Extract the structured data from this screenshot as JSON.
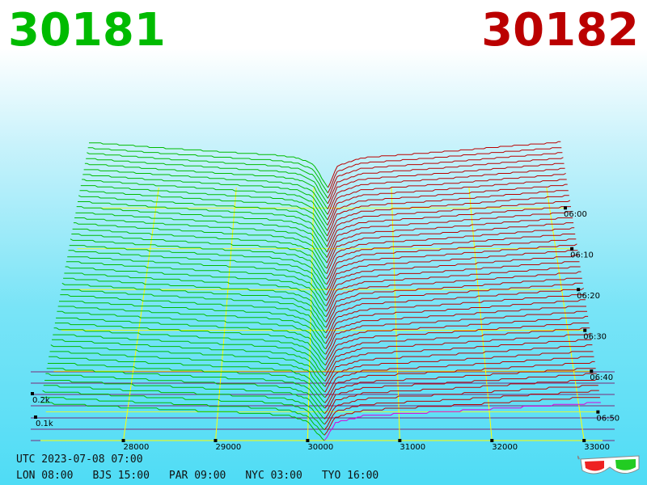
{
  "header": {
    "bid_price": "30181",
    "ask_price": "30182"
  },
  "colors": {
    "bid": "#00bb00",
    "ask": "#bb0000",
    "grid": "#ffff00",
    "baseline": "#7a2a7a",
    "latest_ask": "#dd00dd"
  },
  "chart_data": {
    "type": "line",
    "title": "",
    "xlabel": "",
    "ylabel": "",
    "x_ticks": [
      "28000",
      "29000",
      "30000",
      "31000",
      "32000",
      "33000"
    ],
    "xlim": [
      27100,
      33200
    ],
    "z_ticks": [
      "0.2k",
      "0.1k"
    ],
    "time_ticks": [
      "06:00",
      "06:10",
      "06:20",
      "06:30",
      "06:40",
      "06:50"
    ],
    "time_range": [
      "06:00",
      "06:55"
    ],
    "grid": true,
    "series": [
      {
        "side": "bid",
        "x": [
          27100,
          27500,
          28000,
          28500,
          29000,
          29500,
          29800,
          30000,
          30181
        ],
        "cumulative_volume": [
          310,
          295,
          275,
          258,
          240,
          225,
          205,
          160,
          0
        ]
      },
      {
        "side": "ask",
        "x": [
          30182,
          30300,
          30600,
          31000,
          31500,
          32000,
          32500,
          33000,
          33200
        ],
        "cumulative_volume": [
          0,
          150,
          205,
          222,
          240,
          262,
          285,
          305,
          315
        ]
      }
    ]
  },
  "footer": {
    "utc": "UTC 2023-07-08 07:00",
    "zones": [
      "LON 08:00",
      "BJS 15:00",
      "PAR 09:00",
      "NYC 03:00",
      "TYO 16:00"
    ]
  },
  "icons": {
    "glasses": "3d-glasses-icon"
  }
}
